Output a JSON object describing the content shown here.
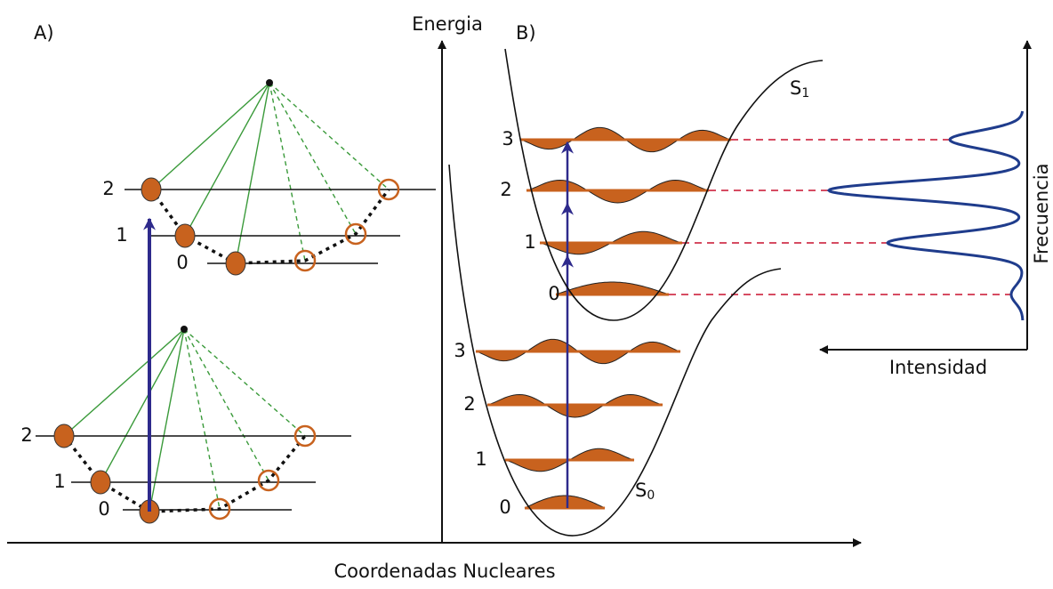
{
  "panel_a": {
    "label": "A)",
    "upper_levels": [
      "0",
      "1",
      "2"
    ],
    "lower_levels": [
      "0",
      "1",
      "2"
    ]
  },
  "panel_b": {
    "label": "B)",
    "s1": {
      "symbol": "S",
      "subscript": "1",
      "levels": [
        "0",
        "1",
        "2",
        "3"
      ]
    },
    "s0": {
      "symbol": "S",
      "subscript": "0",
      "levels": [
        "0",
        "1",
        "2",
        "3"
      ]
    }
  },
  "axes": {
    "energy": "Energia",
    "nuclear": "Coordenadas Nucleares",
    "frequency": "Frecuencia",
    "intensity": "Intensidad"
  }
}
